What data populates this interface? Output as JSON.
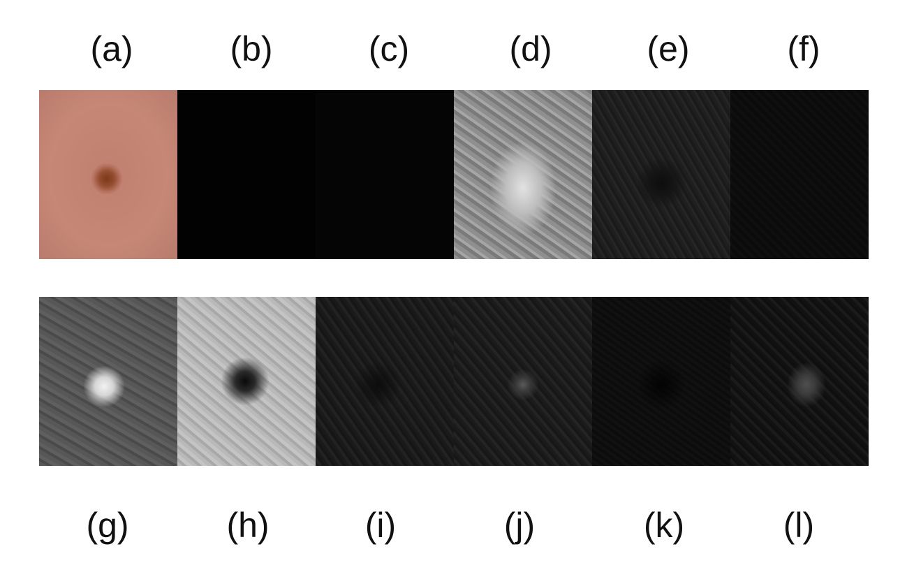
{
  "top_labels": [
    "(a)",
    "(b)",
    "(c)",
    "(d)",
    "(e)",
    "(f)"
  ],
  "bottom_labels": [
    "(g)",
    "(h)",
    "(i)",
    "(j)",
    "(k)",
    "(l)"
  ]
}
